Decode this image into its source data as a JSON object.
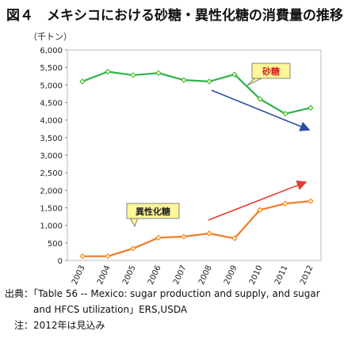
{
  "chart_data": {
    "type": "line",
    "title": "図４　メキシコにおける砂糖・異性化糖の消費量の推移",
    "y_unit_label": "（千トン）",
    "categories": [
      "2003",
      "2004",
      "2005",
      "2006",
      "2007",
      "2008",
      "2009",
      "2010",
      "2011",
      "2012"
    ],
    "series": [
      {
        "name": "砂糖",
        "color": "#2db34a",
        "values": [
          5100,
          5380,
          5280,
          5340,
          5140,
          5100,
          5300,
          4600,
          4180,
          4350
        ]
      },
      {
        "name": "異性化糖",
        "color": "#f07a2a",
        "values": [
          120,
          120,
          340,
          650,
          680,
          770,
          630,
          1440,
          1620,
          1690
        ]
      }
    ],
    "ylim": [
      0,
      6000
    ],
    "yticks": [
      0,
      {
        "value": 500,
        "label": "500"
      },
      {
        "value": 1000,
        "label": "1,000"
      },
      {
        "value": 1500,
        "label": "1,500"
      },
      {
        "value": 2000,
        "label": "2,000"
      },
      {
        "value": 2500,
        "label": "2,500"
      },
      {
        "value": 3000,
        "label": "3,000"
      },
      {
        "value": 3500,
        "label": "3,500"
      },
      {
        "value": 4000,
        "label": "4,000"
      },
      {
        "value": 4500,
        "label": "4,500"
      },
      {
        "value": 5000,
        "label": "5,000"
      },
      {
        "value": 5500,
        "label": "5,500"
      },
      {
        "value": 6000,
        "label": "6,000"
      }
    ],
    "grid": false,
    "source": [
      "出典：「Table 56 -- Mexico: sugar production and supply, and sugar",
      "and HFCS utilization」ERS,USDA"
    ],
    "note": "注：2012年は見込み"
  }
}
